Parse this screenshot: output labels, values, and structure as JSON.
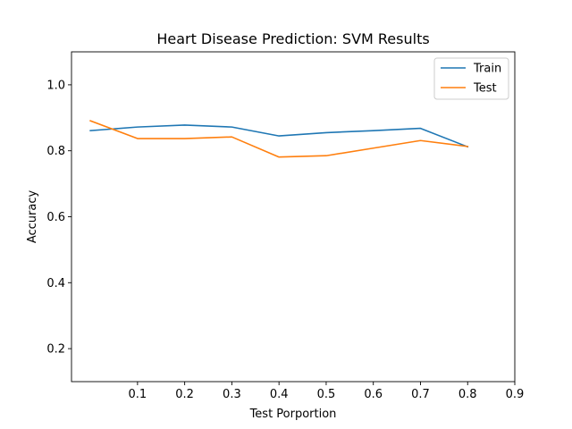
{
  "chart_data": {
    "type": "line",
    "title": "Heart Disease Prediction: SVM Results",
    "xlabel": "Test Porportion",
    "ylabel": "Accuracy",
    "xlim": [
      -0.04,
      0.9
    ],
    "ylim": [
      0.1,
      1.1
    ],
    "xticks": [
      0.1,
      0.2,
      0.3,
      0.4,
      0.5,
      0.6,
      0.7,
      0.8,
      0.9
    ],
    "xtick_labels": [
      "0.1",
      "0.2",
      "0.3",
      "0.4",
      "0.5",
      "0.6",
      "0.7",
      "0.8",
      "0.9"
    ],
    "yticks": [
      0.2,
      0.4,
      0.6,
      0.8,
      1.0
    ],
    "ytick_labels": [
      "0.2",
      "0.4",
      "0.6",
      "0.8",
      "1.0"
    ],
    "grid": false,
    "legend_position": "top-right",
    "x": [
      0.0,
      0.1,
      0.2,
      0.3,
      0.4,
      0.5,
      0.6,
      0.7,
      0.8
    ],
    "series": [
      {
        "name": "Train",
        "color": "#1f77b4",
        "values": [
          0.861,
          0.872,
          0.878,
          0.872,
          0.845,
          0.855,
          0.861,
          0.868,
          0.812
        ]
      },
      {
        "name": "Test",
        "color": "#ff7f0e",
        "values": [
          0.891,
          0.837,
          0.837,
          0.842,
          0.781,
          0.785,
          0.808,
          0.831,
          0.813
        ]
      }
    ]
  }
}
